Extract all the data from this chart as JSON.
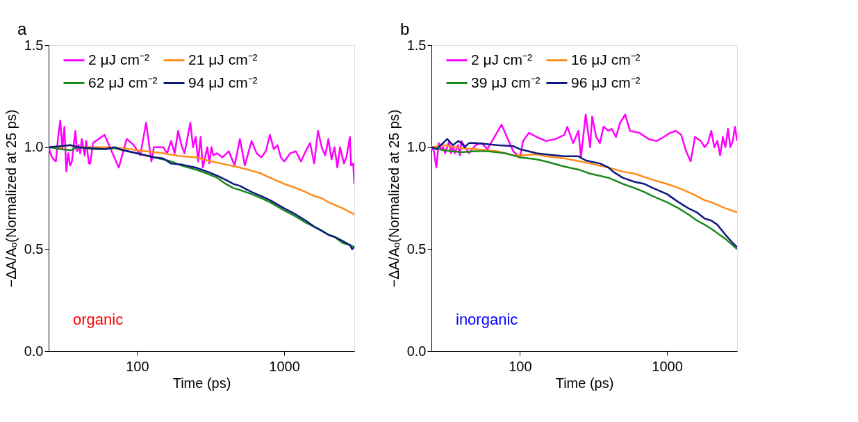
{
  "chart_data": [
    {
      "type": "line",
      "xlabel": "Time (ps)",
      "ylabel": "−ΔA/Aₒ(Normalized at 25 ps)",
      "log": "x",
      "grid": false,
      "legend": "top",
      "line_style": "solid",
      "xlim": [
        25,
        3000
      ],
      "xticks": [
        100,
        1000
      ],
      "ylim": [
        0,
        1.5
      ],
      "yticks": [
        {
          "value": 0,
          "label": "0.0"
        },
        {
          "value": 0.5,
          "label": "0.5"
        },
        {
          "value": 1,
          "label": "1.0"
        },
        {
          "value": 1.5,
          "label": "1.5"
        }
      ],
      "annotations": [
        "a",
        "organic"
      ],
      "series": [
        {
          "name": "2   μJ cm⁻²",
          "color": "#ff00ff",
          "x": [
            25,
            26,
            27,
            28,
            29,
            30,
            31,
            32,
            33,
            34,
            35,
            36,
            38,
            39,
            40,
            41,
            42,
            44,
            45,
            47,
            48,
            50,
            60,
            75,
            85,
            95,
            105,
            115,
            125,
            130,
            150,
            160,
            170,
            180,
            190,
            200,
            210,
            230,
            240,
            250,
            260,
            270,
            280,
            300,
            310,
            320,
            330,
            350,
            380,
            420,
            460,
            500,
            540,
            600,
            650,
            700,
            750,
            800,
            850,
            900,
            950,
            1000,
            1100,
            1200,
            1300,
            1400,
            1500,
            1600,
            1700,
            1800,
            1900,
            2000,
            2100,
            2200,
            2300,
            2400,
            2550,
            2650,
            2800,
            2850,
            2950,
            3000
          ],
          "values": [
            1.0,
            0.96,
            0.94,
            0.93,
            1.05,
            1.13,
            0.99,
            1.1,
            0.88,
            0.97,
            0.91,
            0.93,
            1.08,
            0.98,
            1.01,
            0.97,
            1.04,
            0.96,
            1.03,
            0.92,
            0.92,
            1.02,
            1.06,
            0.9,
            1.04,
            1.01,
            0.96,
            1.12,
            0.93,
            1.0,
            1.0,
            0.97,
            1.03,
            0.97,
            1.08,
            1.01,
            0.97,
            1.12,
            1.0,
            1.05,
            0.93,
            1.05,
            0.9,
            1.0,
            0.92,
            1.0,
            0.96,
            0.97,
            0.95,
            0.98,
            0.91,
            1.04,
            0.91,
            1.03,
            0.97,
            0.95,
            0.98,
            1.06,
            0.99,
            1.01,
            0.95,
            0.93,
            0.97,
            0.98,
            0.93,
            0.98,
            1.02,
            0.92,
            1.08,
            1.0,
            0.96,
            1.04,
            0.94,
            1.0,
            0.9,
            1.0,
            0.92,
            0.95,
            1.05,
            0.91,
            0.92,
            0.82
          ]
        },
        {
          "name": "21 μJ cm⁻²",
          "color": "#ff8c1a",
          "x": [
            25,
            30,
            35,
            40,
            50,
            60,
            80,
            100,
            150,
            200,
            250,
            300,
            400,
            500,
            600,
            700,
            800,
            1000,
            1200,
            1400,
            1600,
            1800,
            2000,
            2500,
            3000
          ],
          "values": [
            1.0,
            1.0,
            1.01,
            1.0,
            1.0,
            1.0,
            0.995,
            0.985,
            0.97,
            0.955,
            0.95,
            0.935,
            0.915,
            0.9,
            0.885,
            0.87,
            0.85,
            0.82,
            0.8,
            0.78,
            0.76,
            0.75,
            0.73,
            0.7,
            0.67
          ]
        },
        {
          "name": "62 μJ cm⁻²",
          "color": "#1a8a1a",
          "x": [
            25,
            30,
            35,
            40,
            50,
            60,
            70,
            80,
            100,
            130,
            150,
            170,
            200,
            250,
            300,
            350,
            400,
            450,
            500,
            600,
            700,
            800,
            1000,
            1200,
            1400,
            1600,
            1800,
            2000,
            2200,
            2500,
            2800,
            3000
          ],
          "values": [
            1.0,
            0.99,
            0.985,
            1.0,
            0.99,
            0.99,
            0.995,
            0.985,
            0.97,
            0.95,
            0.94,
            0.93,
            0.91,
            0.89,
            0.87,
            0.85,
            0.82,
            0.8,
            0.79,
            0.77,
            0.75,
            0.73,
            0.69,
            0.66,
            0.63,
            0.61,
            0.59,
            0.57,
            0.56,
            0.53,
            0.52,
            0.51
          ]
        },
        {
          "name": "94 μJ cm⁻²",
          "color": "#0d1a80",
          "x": [
            25,
            30,
            35,
            40,
            50,
            60,
            70,
            80,
            100,
            130,
            150,
            170,
            200,
            250,
            300,
            350,
            400,
            450,
            500,
            600,
            700,
            800,
            1000,
            1200,
            1400,
            1600,
            1800,
            2000,
            2200,
            2500,
            2800,
            2900,
            3000
          ],
          "values": [
            1.0,
            1.005,
            1.01,
            1.0,
            0.995,
            0.99,
            1.0,
            0.985,
            0.97,
            0.95,
            0.945,
            0.92,
            0.915,
            0.9,
            0.88,
            0.86,
            0.84,
            0.82,
            0.81,
            0.78,
            0.76,
            0.74,
            0.7,
            0.67,
            0.64,
            0.61,
            0.59,
            0.57,
            0.56,
            0.54,
            0.52,
            0.5,
            0.51
          ]
        }
      ]
    },
    {
      "type": "line",
      "xlabel": "Time (ps)",
      "ylabel": "−ΔA/Aₒ(Normalized at 25 ps)",
      "log": "x",
      "grid": false,
      "legend": "top",
      "line_style": "solid",
      "xlim": [
        25,
        3000
      ],
      "xticks": [
        100,
        1000
      ],
      "ylim": [
        0,
        1.5
      ],
      "yticks": [
        {
          "value": 0,
          "label": "0.0"
        },
        {
          "value": 0.5,
          "label": "0.5"
        },
        {
          "value": 1,
          "label": "1.0"
        },
        {
          "value": 1.5,
          "label": "1.5"
        }
      ],
      "annotations": [
        "b",
        "inorganic"
      ],
      "series": [
        {
          "name": "2   μJ cm⁻²",
          "color": "#ff00ff",
          "x": [
            25,
            26,
            27,
            28,
            29,
            30,
            31,
            33,
            34,
            35,
            36,
            38,
            39,
            40,
            45,
            50,
            55,
            60,
            75,
            90,
            100,
            105,
            115,
            130,
            150,
            175,
            200,
            210,
            230,
            250,
            260,
            280,
            300,
            310,
            330,
            350,
            370,
            400,
            420,
            450,
            480,
            520,
            560,
            650,
            750,
            850,
            950,
            1050,
            1150,
            1250,
            1350,
            1450,
            1550,
            1700,
            1800,
            1900,
            2000,
            2100,
            2200,
            2300,
            2400,
            2500,
            2600,
            2700,
            2800,
            2900,
            3000
          ],
          "values": [
            1.0,
            0.98,
            0.9,
            1.02,
            0.99,
            1.0,
            0.97,
            1.03,
            0.97,
            1.01,
            0.97,
            1.01,
            0.96,
            1.03,
            0.97,
            1.01,
            1.02,
            0.99,
            1.11,
            0.98,
            0.95,
            1.03,
            1.07,
            1.05,
            1.03,
            1.04,
            1.06,
            1.1,
            1.02,
            1.08,
            0.95,
            1.16,
            1.0,
            1.15,
            1.05,
            1.02,
            1.1,
            1.08,
            1.09,
            1.05,
            1.12,
            1.16,
            1.08,
            1.07,
            1.04,
            1.03,
            1.05,
            1.07,
            1.08,
            1.06,
            0.98,
            0.93,
            1.05,
            1.03,
            1.0,
            1.02,
            1.08,
            1.0,
            1.03,
            0.96,
            1.05,
            1.0,
            1.09,
            1.0,
            1.03,
            1.1,
            1.03
          ]
        },
        {
          "name": "16 μJ cm⁻²",
          "color": "#ff8c1a",
          "x": [
            25,
            30,
            40,
            50,
            70,
            90,
            100,
            130,
            150,
            200,
            300,
            400,
            500,
            600,
            800,
            1000,
            1200,
            1500,
            1800,
            2000,
            2500,
            3000
          ],
          "values": [
            1.0,
            1.01,
            0.995,
            0.99,
            0.98,
            0.96,
            0.96,
            0.965,
            0.955,
            0.945,
            0.92,
            0.9,
            0.88,
            0.87,
            0.84,
            0.82,
            0.8,
            0.77,
            0.74,
            0.73,
            0.7,
            0.68
          ]
        },
        {
          "name": "39 μJ cm⁻²",
          "color": "#1a8a1a",
          "x": [
            25,
            30,
            40,
            50,
            60,
            80,
            100,
            130,
            150,
            200,
            250,
            300,
            400,
            500,
            600,
            700,
            800,
            1000,
            1200,
            1400,
            1600,
            1800,
            2000,
            2500,
            3000
          ],
          "values": [
            1.0,
            0.985,
            0.975,
            0.98,
            0.98,
            0.97,
            0.95,
            0.94,
            0.93,
            0.905,
            0.89,
            0.87,
            0.85,
            0.82,
            0.8,
            0.78,
            0.76,
            0.73,
            0.7,
            0.67,
            0.64,
            0.62,
            0.6,
            0.55,
            0.5
          ]
        },
        {
          "name": "96 μJ cm⁻²",
          "color": "#0d1a80",
          "x": [
            25,
            27,
            30,
            32,
            35,
            38,
            40,
            42,
            45,
            50,
            70,
            90,
            100,
            130,
            150,
            200,
            250,
            280,
            300,
            350,
            400,
            430,
            500,
            600,
            700,
            800,
            1000,
            1200,
            1400,
            1600,
            1800,
            2000,
            2200,
            2500,
            2800,
            3000
          ],
          "values": [
            1.0,
            0.99,
            1.02,
            1.04,
            1.01,
            1.03,
            1.02,
            1.0,
            1.02,
            1.02,
            1.01,
            1.005,
            0.99,
            0.97,
            0.965,
            0.955,
            0.955,
            0.935,
            0.93,
            0.92,
            0.9,
            0.88,
            0.85,
            0.83,
            0.82,
            0.8,
            0.77,
            0.73,
            0.7,
            0.68,
            0.65,
            0.64,
            0.62,
            0.57,
            0.53,
            0.51
          ]
        }
      ]
    }
  ]
}
